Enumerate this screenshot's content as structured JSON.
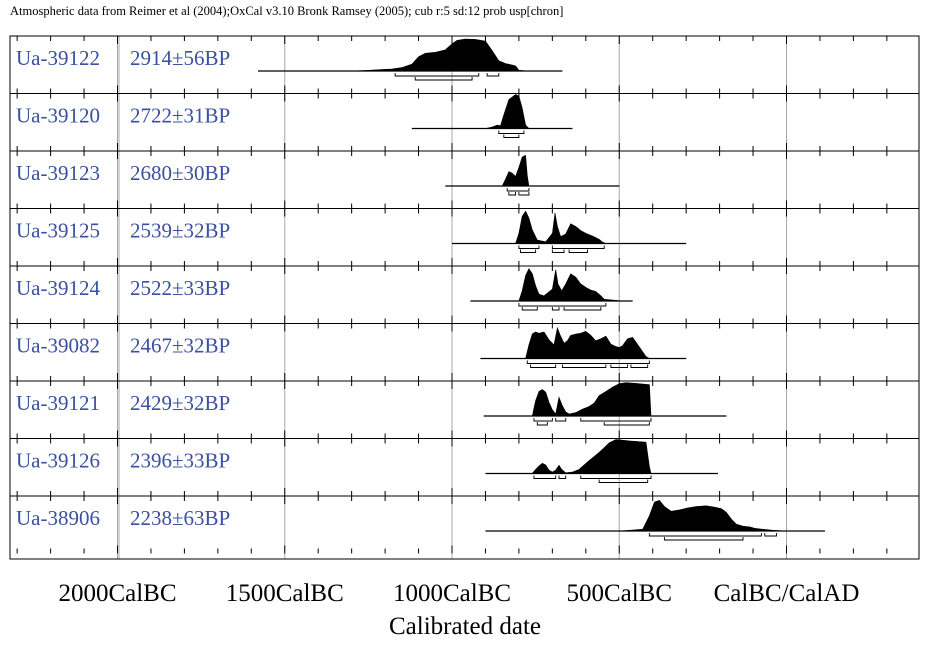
{
  "header": "Atmospheric data from Reimer et al (2004);OxCal v3.10 Bronk Ramsey (2005); cub r:5 sd:12 prob usp[chron]",
  "chart_data": {
    "type": "area",
    "title": "",
    "xlabel": "Calibrated date",
    "xlim": [
      -2300,
      300
    ],
    "x_ticks": [
      {
        "value": -2000,
        "label": "2000CalBC"
      },
      {
        "value": -1500,
        "label": "1500CalBC"
      },
      {
        "value": -1000,
        "label": "1000CalBC"
      },
      {
        "value": -500,
        "label": "500CalBC"
      },
      {
        "value": 0,
        "label": "CalBC/CalAD"
      }
    ],
    "grid": true,
    "samples": [
      {
        "lab": "Ua-39122",
        "date": "2914±56BP",
        "line": [
          -1580,
          -670
        ],
        "profile": [
          [
            -1580,
            0
          ],
          [
            -1300,
            0
          ],
          [
            -1250,
            0.02
          ],
          [
            -1180,
            0.06
          ],
          [
            -1150,
            0.1
          ],
          [
            -1120,
            0.2
          ],
          [
            -1100,
            0.42
          ],
          [
            -1080,
            0.52
          ],
          [
            -1050,
            0.55
          ],
          [
            -1020,
            0.62
          ],
          [
            -1000,
            0.8
          ],
          [
            -985,
            0.9
          ],
          [
            -960,
            0.94
          ],
          [
            -930,
            0.93
          ],
          [
            -900,
            0.88
          ],
          [
            -880,
            0.6
          ],
          [
            -860,
            0.3
          ],
          [
            -840,
            0.22
          ],
          [
            -810,
            0.15
          ],
          [
            -800,
            0.02
          ],
          [
            -770,
            0
          ],
          [
            -670,
            0
          ]
        ],
        "bars": [
          [
            [
              -1170,
              -920
            ],
            [
              -895,
              -860
            ]
          ],
          [
            [
              -1110,
              -940
            ]
          ]
        ]
      },
      {
        "lab": "Ua-39120",
        "date": "2722±31BP",
        "line": [
          -1120,
          -640
        ],
        "profile": [
          [
            -1120,
            0
          ],
          [
            -900,
            0
          ],
          [
            -880,
            0.04
          ],
          [
            -865,
            0.1
          ],
          [
            -855,
            0.08
          ],
          [
            -845,
            0.4
          ],
          [
            -830,
            0.85
          ],
          [
            -810,
            1.0
          ],
          [
            -800,
            0.95
          ],
          [
            -790,
            0.6
          ],
          [
            -780,
            0.1
          ],
          [
            -770,
            0
          ],
          [
            -640,
            0
          ]
        ],
        "bars": [
          [
            [
              -860,
              -785
            ]
          ],
          [
            [
              -845,
              -800
            ]
          ]
        ]
      },
      {
        "lab": "Ua-39123",
        "date": "2680±30BP",
        "line": [
          -1020,
          -500
        ],
        "profile": [
          [
            -1020,
            0
          ],
          [
            -850,
            0
          ],
          [
            -840,
            0.2
          ],
          [
            -830,
            0.42
          ],
          [
            -820,
            0.38
          ],
          [
            -810,
            0.28
          ],
          [
            -800,
            0.55
          ],
          [
            -790,
            0.85
          ],
          [
            -780,
            0.9
          ],
          [
            -775,
            0.3
          ],
          [
            -770,
            0
          ],
          [
            -500,
            0
          ]
        ],
        "bars": [
          [
            [
              -835,
              -770
            ]
          ],
          [
            [
              -830,
              -810
            ],
            [
              -800,
              -770
            ]
          ]
        ]
      },
      {
        "lab": "Ua-39125",
        "date": "2539±32BP",
        "line": [
          -1000,
          -300
        ],
        "profile": [
          [
            -1000,
            0
          ],
          [
            -810,
            0
          ],
          [
            -800,
            0.3
          ],
          [
            -790,
            0.8
          ],
          [
            -780,
            0.95
          ],
          [
            -770,
            0.75
          ],
          [
            -760,
            0.4
          ],
          [
            -745,
            0.1
          ],
          [
            -720,
            0.05
          ],
          [
            -700,
            0.3
          ],
          [
            -692,
            0.9
          ],
          [
            -685,
            0.5
          ],
          [
            -675,
            0.2
          ],
          [
            -660,
            0.28
          ],
          [
            -645,
            0.58
          ],
          [
            -630,
            0.5
          ],
          [
            -615,
            0.38
          ],
          [
            -600,
            0.3
          ],
          [
            -580,
            0.22
          ],
          [
            -560,
            0.12
          ],
          [
            -550,
            0.04
          ],
          [
            -540,
            0
          ],
          [
            -300,
            0
          ]
        ],
        "bars": [
          [
            [
              -800,
              -740
            ],
            [
              -700,
              -545
            ]
          ],
          [
            [
              -795,
              -750
            ],
            [
              -700,
              -665
            ],
            [
              -650,
              -595
            ]
          ]
        ]
      },
      {
        "lab": "Ua-39124",
        "date": "2522±33BP",
        "line": [
          -945,
          -460
        ],
        "profile": [
          [
            -945,
            0
          ],
          [
            -800,
            0
          ],
          [
            -790,
            0.3
          ],
          [
            -780,
            0.75
          ],
          [
            -770,
            0.95
          ],
          [
            -760,
            0.8
          ],
          [
            -750,
            0.45
          ],
          [
            -740,
            0.2
          ],
          [
            -725,
            0.15
          ],
          [
            -700,
            0.35
          ],
          [
            -690,
            0.92
          ],
          [
            -683,
            0.5
          ],
          [
            -672,
            0.3
          ],
          [
            -660,
            0.5
          ],
          [
            -645,
            0.8
          ],
          [
            -630,
            0.7
          ],
          [
            -615,
            0.5
          ],
          [
            -600,
            0.4
          ],
          [
            -585,
            0.32
          ],
          [
            -570,
            0.28
          ],
          [
            -555,
            0.15
          ],
          [
            -545,
            0.05
          ],
          [
            -520,
            0.03
          ],
          [
            -500,
            0.01
          ],
          [
            -460,
            0
          ]
        ],
        "bars": [
          [
            [
              -800,
              -540
            ]
          ],
          [
            [
              -790,
              -745
            ],
            [
              -700,
              -680
            ],
            [
              -665,
              -555
            ]
          ]
        ]
      },
      {
        "lab": "Ua-39082",
        "date": "2467±32BP",
        "line": [
          -915,
          -300
        ],
        "profile": [
          [
            -915,
            0
          ],
          [
            -780,
            0
          ],
          [
            -770,
            0.4
          ],
          [
            -760,
            0.72
          ],
          [
            -750,
            0.78
          ],
          [
            -740,
            0.74
          ],
          [
            -725,
            0.78
          ],
          [
            -710,
            0.55
          ],
          [
            -695,
            0.4
          ],
          [
            -685,
            0.9
          ],
          [
            -677,
            0.7
          ],
          [
            -665,
            0.45
          ],
          [
            -655,
            0.52
          ],
          [
            -645,
            0.68
          ],
          [
            -630,
            0.72
          ],
          [
            -615,
            0.74
          ],
          [
            -600,
            0.8
          ],
          [
            -585,
            0.68
          ],
          [
            -570,
            0.52
          ],
          [
            -555,
            0.58
          ],
          [
            -540,
            0.66
          ],
          [
            -525,
            0.42
          ],
          [
            -510,
            0.35
          ],
          [
            -500,
            0.32
          ],
          [
            -490,
            0.38
          ],
          [
            -475,
            0.58
          ],
          [
            -460,
            0.62
          ],
          [
            -420,
            0.06
          ],
          [
            -410,
            0
          ],
          [
            -300,
            0
          ]
        ],
        "bars": [
          [
            [
              -775,
              -410
            ]
          ],
          [
            [
              -765,
              -690
            ],
            [
              -670,
              -540
            ],
            [
              -525,
              -475
            ],
            [
              -465,
              -415
            ]
          ]
        ]
      },
      {
        "lab": "Ua-39121",
        "date": "2429±32BP",
        "line": [
          -905,
          -180
        ],
        "profile": [
          [
            -905,
            0
          ],
          [
            -760,
            0
          ],
          [
            -750,
            0.45
          ],
          [
            -740,
            0.72
          ],
          [
            -730,
            0.78
          ],
          [
            -720,
            0.7
          ],
          [
            -710,
            0.4
          ],
          [
            -700,
            0.18
          ],
          [
            -690,
            0.06
          ],
          [
            -680,
            0.55
          ],
          [
            -670,
            0.3
          ],
          [
            -660,
            0.12
          ],
          [
            -650,
            0.06
          ],
          [
            -630,
            0.1
          ],
          [
            -610,
            0.2
          ],
          [
            -590,
            0.28
          ],
          [
            -575,
            0.38
          ],
          [
            -560,
            0.6
          ],
          [
            -540,
            0.72
          ],
          [
            -520,
            0.85
          ],
          [
            -500,
            0.95
          ],
          [
            -480,
            0.98
          ],
          [
            -450,
            0.96
          ],
          [
            -410,
            0.92
          ],
          [
            -405,
            0
          ],
          [
            -180,
            0
          ]
        ],
        "bars": [
          [
            [
              -755,
              -700
            ],
            [
              -690,
              -660
            ],
            [
              -615,
              -405
            ]
          ],
          [
            [
              -745,
              -715
            ],
            [
              -545,
              -410
            ]
          ]
        ]
      },
      {
        "lab": "Ua-39126",
        "date": "2396±33BP",
        "line": [
          -900,
          -205
        ],
        "profile": [
          [
            -900,
            0
          ],
          [
            -760,
            0
          ],
          [
            -750,
            0.12
          ],
          [
            -740,
            0.22
          ],
          [
            -730,
            0.3
          ],
          [
            -720,
            0.25
          ],
          [
            -710,
            0.1
          ],
          [
            -700,
            0.04
          ],
          [
            -690,
            0.1
          ],
          [
            -680,
            0.24
          ],
          [
            -672,
            0.12
          ],
          [
            -660,
            0.02
          ],
          [
            -640,
            0.04
          ],
          [
            -620,
            0.12
          ],
          [
            -605,
            0.25
          ],
          [
            -590,
            0.38
          ],
          [
            -575,
            0.5
          ],
          [
            -560,
            0.62
          ],
          [
            -545,
            0.76
          ],
          [
            -530,
            0.9
          ],
          [
            -510,
            1.0
          ],
          [
            -490,
            0.98
          ],
          [
            -470,
            0.96
          ],
          [
            -445,
            0.94
          ],
          [
            -420,
            0.92
          ],
          [
            -410,
            0.2
          ],
          [
            -405,
            0
          ],
          [
            -205,
            0
          ]
        ],
        "bars": [
          [
            [
              -755,
              -690
            ],
            [
              -680,
              -660
            ],
            [
              -615,
              -405
            ]
          ],
          [
            [
              -560,
              -415
            ]
          ]
        ]
      },
      {
        "lab": "Ua-38906",
        "date": "2238±63BP",
        "line": [
          -900,
          115
        ],
        "profile": [
          [
            -900,
            0
          ],
          [
            -500,
            0
          ],
          [
            -430,
            0.05
          ],
          [
            -410,
            0.45
          ],
          [
            -395,
            0.85
          ],
          [
            -380,
            0.9
          ],
          [
            -365,
            0.72
          ],
          [
            -345,
            0.58
          ],
          [
            -320,
            0.62
          ],
          [
            -295,
            0.68
          ],
          [
            -270,
            0.72
          ],
          [
            -240,
            0.74
          ],
          [
            -215,
            0.7
          ],
          [
            -195,
            0.66
          ],
          [
            -180,
            0.55
          ],
          [
            -165,
            0.35
          ],
          [
            -150,
            0.2
          ],
          [
            -130,
            0.14
          ],
          [
            -110,
            0.12
          ],
          [
            -95,
            0.08
          ],
          [
            -70,
            0.05
          ],
          [
            -40,
            0.02
          ],
          [
            0,
            0
          ],
          [
            115,
            0
          ]
        ],
        "bars": [
          [
            [
              -410,
              -75
            ],
            [
              -65,
              -30
            ]
          ],
          [
            [
              -365,
              -130
            ]
          ]
        ]
      }
    ]
  }
}
